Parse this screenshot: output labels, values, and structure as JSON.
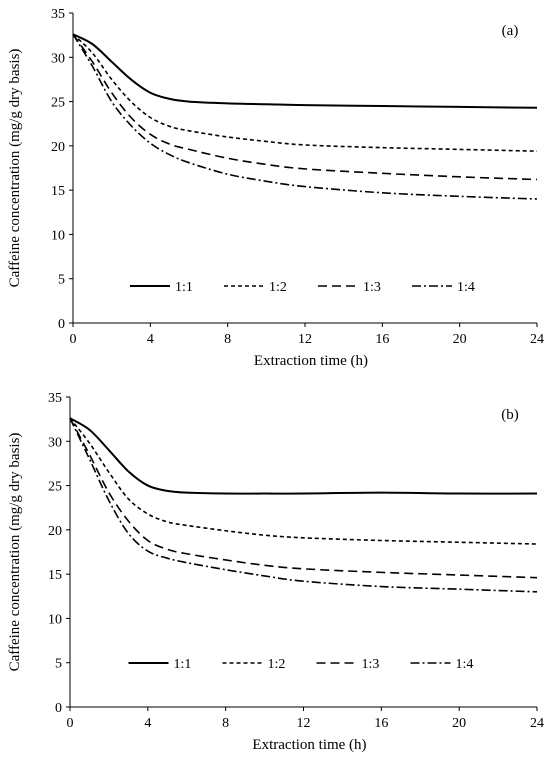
{
  "chart_data": [
    {
      "type": "line",
      "panel_label": "(a)",
      "xlabel": "Extraction time (h)",
      "ylabel": "Caffeine concentration (mg/g dry basis)",
      "xlim": [
        0,
        24
      ],
      "ylim": [
        0,
        35
      ],
      "xticks": [
        0,
        4,
        8,
        12,
        16,
        20,
        24
      ],
      "yticks": [
        0,
        5,
        10,
        15,
        20,
        25,
        30,
        35
      ],
      "grid": false,
      "legend_position": "bottom-center",
      "series": [
        {
          "name": "1:1",
          "dash": "solid",
          "x": [
            0,
            1,
            2,
            3,
            4,
            5,
            6,
            8,
            10,
            12,
            16,
            20,
            24
          ],
          "y": [
            32.6,
            31.5,
            29.5,
            27.5,
            26.0,
            25.3,
            25.0,
            24.8,
            24.7,
            24.6,
            24.5,
            24.4,
            24.3
          ]
        },
        {
          "name": "1:2",
          "dash": "short-dash",
          "x": [
            0,
            1,
            2,
            3,
            4,
            5,
            6,
            8,
            10,
            12,
            16,
            20,
            24
          ],
          "y": [
            32.6,
            30.5,
            27.5,
            25.0,
            23.2,
            22.2,
            21.7,
            21.0,
            20.5,
            20.1,
            19.8,
            19.6,
            19.4
          ]
        },
        {
          "name": "1:3",
          "dash": "long-dash",
          "x": [
            0,
            1,
            2,
            3,
            4,
            5,
            6,
            8,
            10,
            12,
            16,
            20,
            24
          ],
          "y": [
            32.6,
            29.5,
            26.0,
            23.2,
            21.3,
            20.2,
            19.6,
            18.6,
            17.9,
            17.4,
            16.9,
            16.5,
            16.2
          ]
        },
        {
          "name": "1:4",
          "dash": "dash-dot",
          "x": [
            0,
            1,
            2,
            3,
            4,
            5,
            6,
            8,
            10,
            12,
            16,
            20,
            24
          ],
          "y": [
            32.6,
            29.0,
            25.0,
            22.3,
            20.3,
            19.0,
            18.1,
            16.8,
            16.0,
            15.4,
            14.7,
            14.3,
            14.0
          ]
        }
      ]
    },
    {
      "type": "line",
      "panel_label": "(b)",
      "xlabel": "Extraction time (h)",
      "ylabel": "Caffeine concentration (mg/g dry basis)",
      "xlim": [
        0,
        24
      ],
      "ylim": [
        0,
        35
      ],
      "xticks": [
        0,
        4,
        8,
        12,
        16,
        20,
        24
      ],
      "yticks": [
        0,
        5,
        10,
        15,
        20,
        25,
        30,
        35
      ],
      "grid": false,
      "legend_position": "bottom-center",
      "series": [
        {
          "name": "1:1",
          "dash": "solid",
          "x": [
            0,
            1,
            2,
            3,
            4,
            5,
            6,
            8,
            10,
            12,
            16,
            20,
            24
          ],
          "y": [
            32.6,
            31.3,
            29.0,
            26.6,
            25.0,
            24.4,
            24.2,
            24.1,
            24.1,
            24.1,
            24.2,
            24.1,
            24.1
          ]
        },
        {
          "name": "1:2",
          "dash": "short-dash",
          "x": [
            0,
            1,
            2,
            3,
            4,
            5,
            6,
            8,
            10,
            12,
            16,
            20,
            24
          ],
          "y": [
            32.6,
            29.8,
            26.5,
            23.5,
            21.8,
            20.9,
            20.5,
            19.9,
            19.4,
            19.1,
            18.8,
            18.6,
            18.4
          ]
        },
        {
          "name": "1:3",
          "dash": "long-dash",
          "x": [
            0,
            1,
            2,
            3,
            4,
            5,
            6,
            8,
            10,
            12,
            16,
            20,
            24
          ],
          "y": [
            32.6,
            28.5,
            24.2,
            21.0,
            18.8,
            17.8,
            17.3,
            16.6,
            16.0,
            15.6,
            15.2,
            14.9,
            14.6
          ]
        },
        {
          "name": "1:4",
          "dash": "dash-dot",
          "x": [
            0,
            1,
            2,
            3,
            4,
            5,
            6,
            8,
            10,
            12,
            16,
            20,
            24
          ],
          "y": [
            32.6,
            28.0,
            23.3,
            19.6,
            17.6,
            16.8,
            16.3,
            15.5,
            14.8,
            14.2,
            13.6,
            13.3,
            13.0
          ]
        }
      ]
    }
  ]
}
